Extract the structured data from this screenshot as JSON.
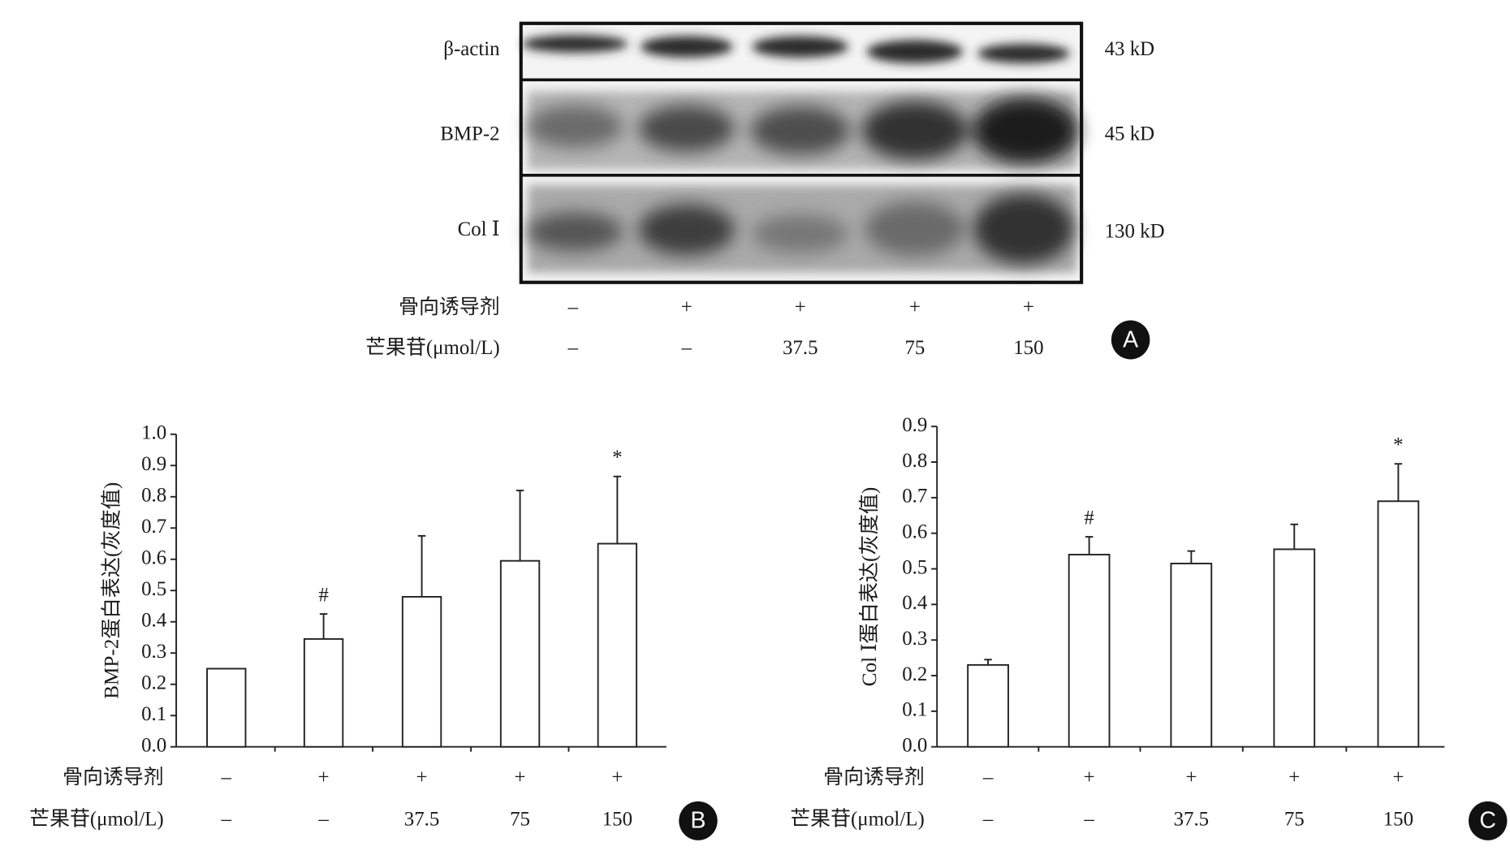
{
  "blot": {
    "bands": [
      {
        "name": "β-actin",
        "size": "43 kD"
      },
      {
        "name": "BMP-2",
        "size": "45 kD"
      },
      {
        "name": "Col Ⅰ",
        "size": "130 kD"
      }
    ],
    "conditions": [
      {
        "name": "骨向诱导剂",
        "values": [
          "–",
          "+",
          "+",
          "+",
          "+"
        ]
      },
      {
        "name": "芒果苷(μmol/L)",
        "values": [
          "–",
          "–",
          "37.5",
          "75",
          "150"
        ]
      }
    ],
    "panel": "A"
  },
  "chart_data": [
    {
      "type": "bar",
      "panel": "B",
      "ylabel": "BMP-2蛋白表达(灰度值)",
      "conditions": [
        {
          "name": "骨向诱导剂",
          "values": [
            "–",
            "+",
            "+",
            "+",
            "+"
          ]
        },
        {
          "name": "芒果苷(μmol/L)",
          "values": [
            "–",
            "–",
            "37.5",
            "75",
            "150"
          ]
        }
      ],
      "values": [
        0.25,
        0.345,
        0.48,
        0.595,
        0.65
      ],
      "errors": [
        0,
        0.08,
        0.195,
        0.225,
        0.215
      ],
      "value_annotations": [
        null,
        "#",
        null,
        null,
        "*"
      ],
      "color": "#ffffff",
      "ylim": [
        0,
        1.0
      ],
      "yticks": [
        {
          "value": 0,
          "label": "0.0"
        },
        0.1,
        0.2,
        0.3,
        0.4,
        0.5,
        0.6,
        0.7,
        0.8,
        0.9,
        {
          "value": 1,
          "label": "1.0"
        }
      ]
    },
    {
      "type": "bar",
      "panel": "C",
      "ylabel": "Col Ⅰ蛋白表达(灰度值)",
      "conditions": [
        {
          "name": "骨向诱导剂",
          "values": [
            "–",
            "+",
            "+",
            "+",
            "+"
          ]
        },
        {
          "name": "芒果苷(μmol/L)",
          "values": [
            "–",
            "–",
            "37.5",
            "75",
            "150"
          ]
        }
      ],
      "values": [
        0.23,
        0.54,
        0.515,
        0.555,
        0.69
      ],
      "errors": [
        0.015,
        0.05,
        0.035,
        0.07,
        0.105
      ],
      "value_annotations": [
        null,
        "#",
        null,
        null,
        "*"
      ],
      "color": "#ffffff",
      "ylim": [
        0,
        0.9
      ],
      "yticks": [
        {
          "value": 0,
          "label": "0.0"
        },
        0.1,
        0.2,
        0.3,
        0.4,
        0.5,
        0.6,
        0.7,
        0.8,
        0.9
      ]
    }
  ]
}
